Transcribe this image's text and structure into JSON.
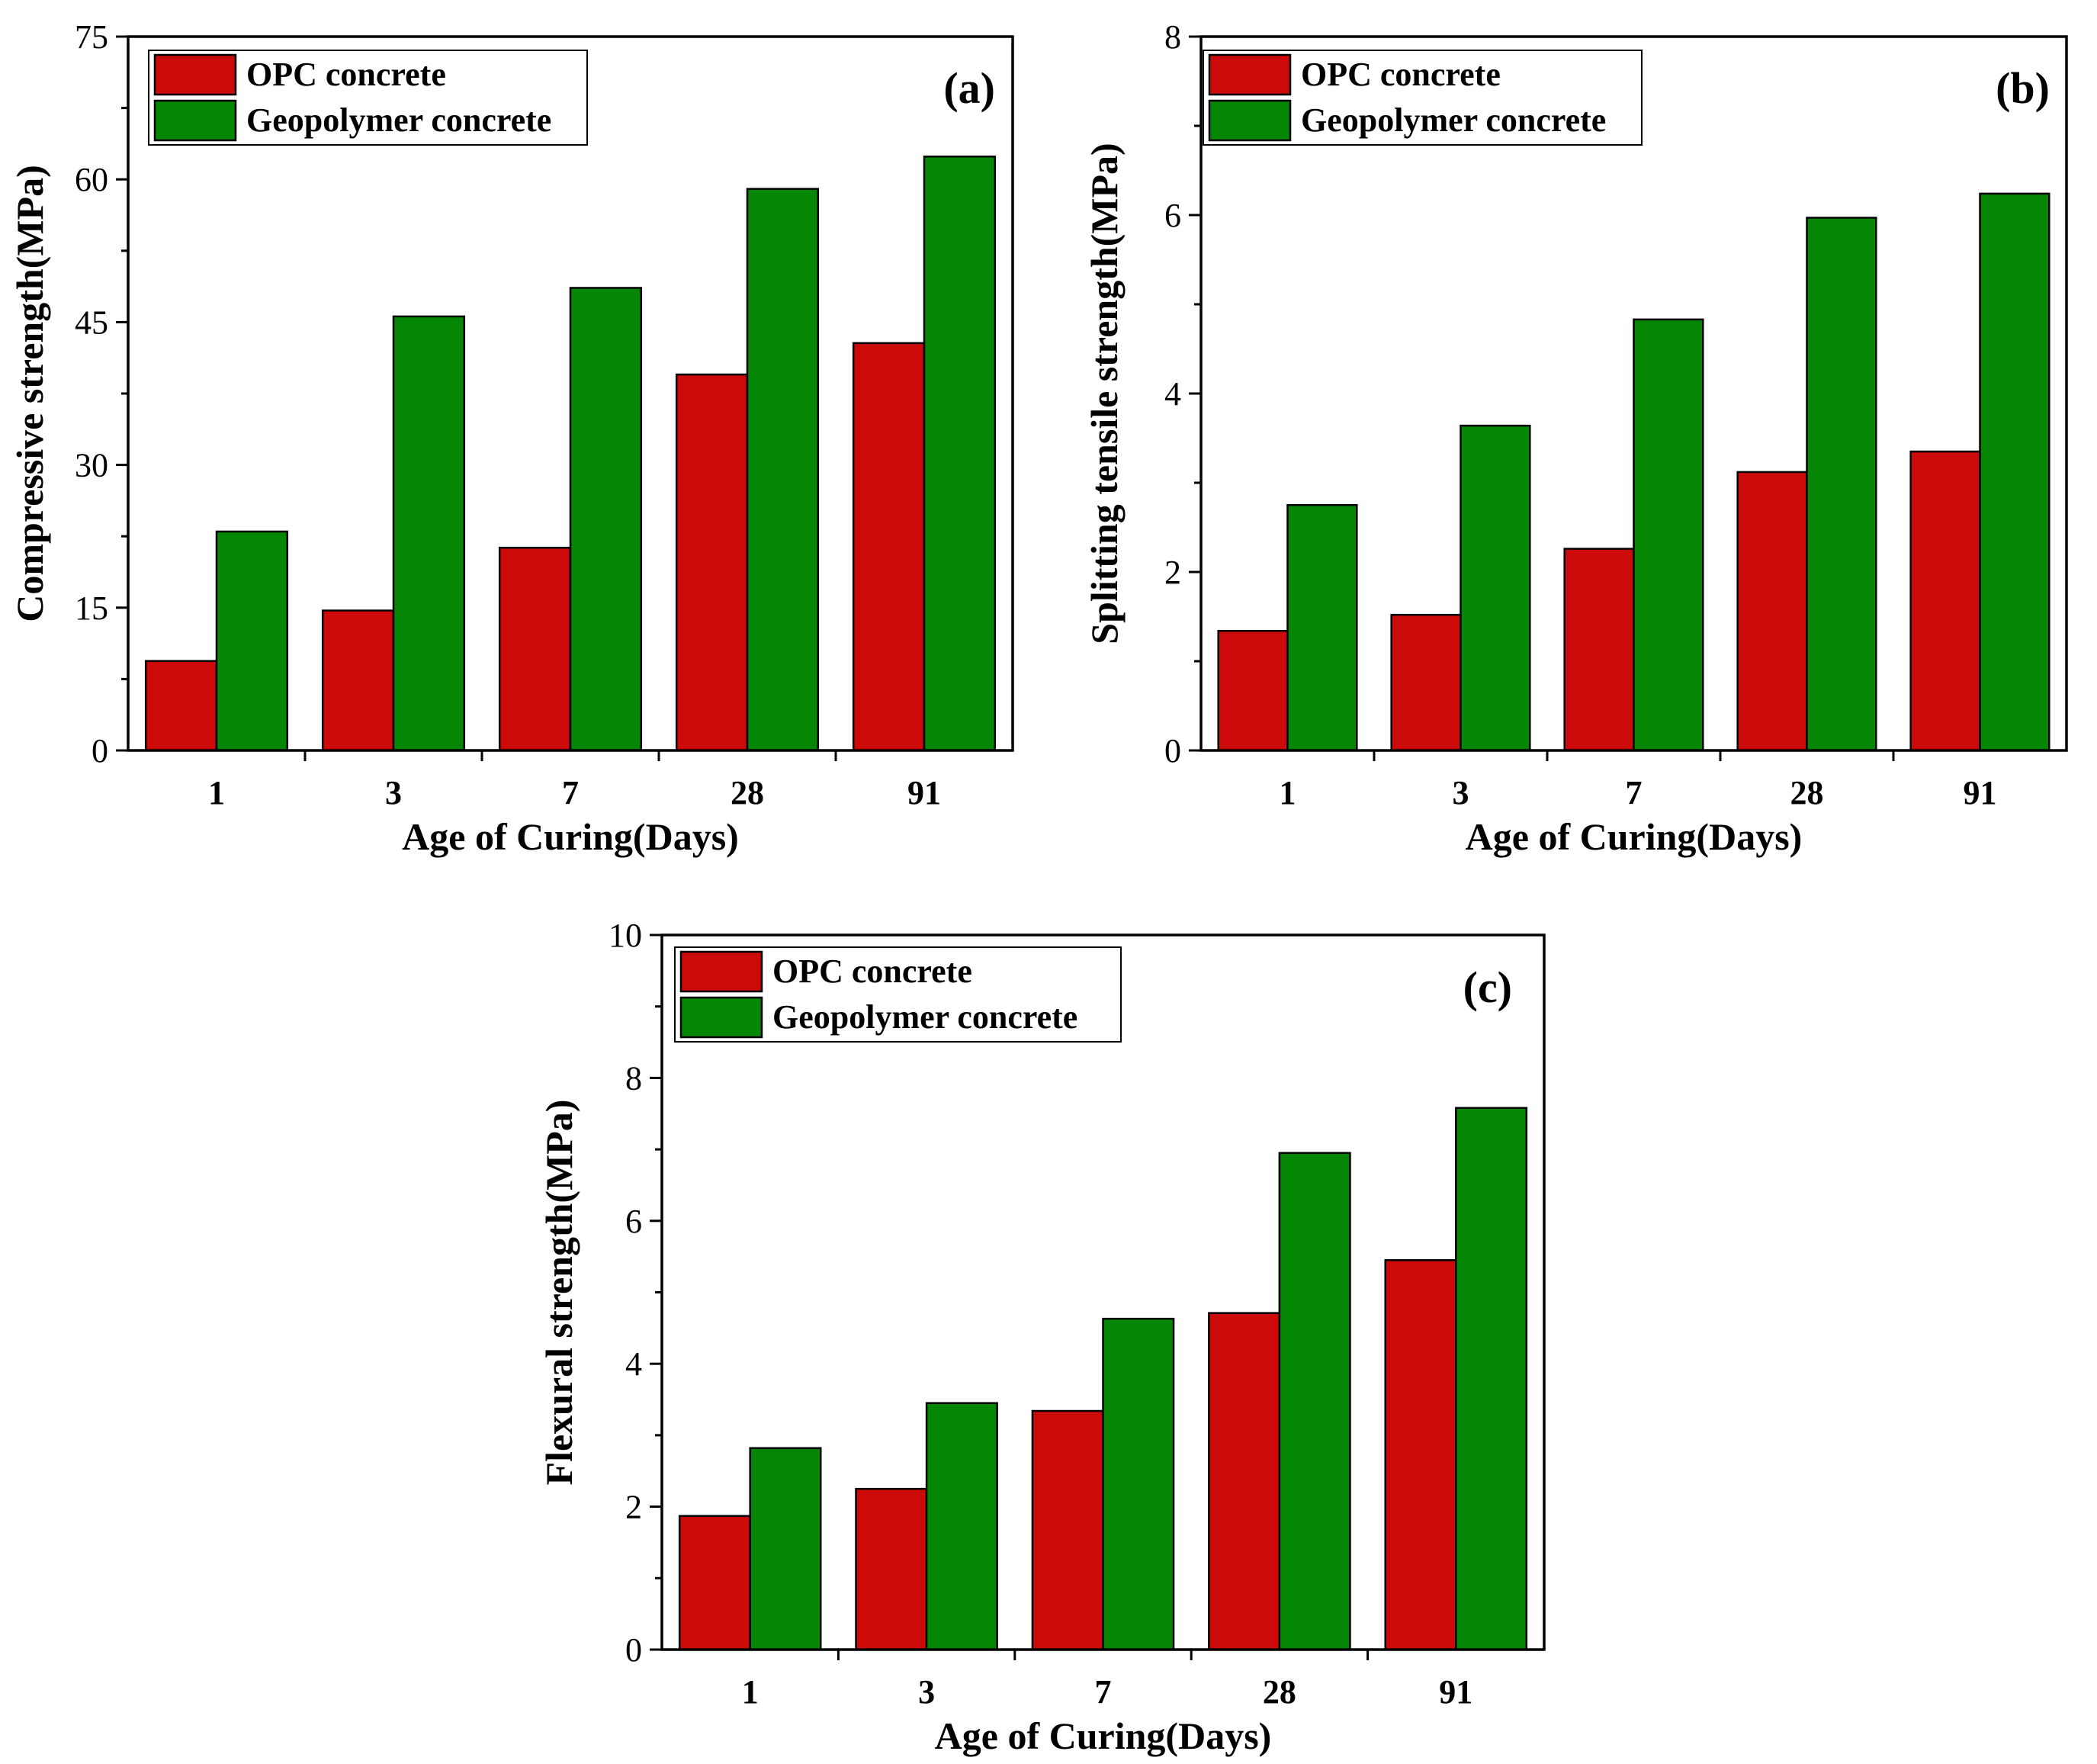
{
  "colors": {
    "opc": "#cc0a0a",
    "geopolymer": "#058705",
    "axis": "#000000",
    "background": "#ffffff"
  },
  "chart_data": [
    {
      "type": "bar",
      "panel_label": "(a)",
      "categories": [
        "1",
        "3",
        "7",
        "28",
        "91"
      ],
      "series": [
        {
          "name": "OPC concrete",
          "values": [
            9.4,
            14.7,
            21.3,
            39.5,
            42.8
          ]
        },
        {
          "name": "Geopolymer concrete",
          "values": [
            23.0,
            45.6,
            48.6,
            59.0,
            62.4
          ]
        }
      ],
      "xlabel": "Age of Curing(Days)",
      "ylabel": "Compressive strength(MPa)",
      "ylim": [
        0,
        75
      ],
      "yticks": [
        0,
        15,
        30,
        45,
        60,
        75
      ],
      "legend": "top-left",
      "grid": false
    },
    {
      "type": "bar",
      "panel_label": "(b)",
      "categories": [
        "1",
        "3",
        "7",
        "28",
        "91"
      ],
      "series": [
        {
          "name": "OPC concrete",
          "values": [
            1.34,
            1.52,
            2.26,
            3.12,
            3.35
          ]
        },
        {
          "name": "Geopolymer concrete",
          "values": [
            2.75,
            3.64,
            4.83,
            5.97,
            6.24
          ]
        }
      ],
      "xlabel": "Age of Curing(Days)",
      "ylabel": "Splitting tensile strength(MPa)",
      "ylim": [
        0,
        8
      ],
      "yticks": [
        0,
        2,
        4,
        6,
        8
      ],
      "legend": "top-left",
      "grid": false
    },
    {
      "type": "bar",
      "panel_label": "(c)",
      "categories": [
        "1",
        "3",
        "7",
        "28",
        "91"
      ],
      "series": [
        {
          "name": "OPC concrete",
          "values": [
            1.87,
            2.25,
            3.34,
            4.71,
            5.45
          ]
        },
        {
          "name": "Geopolymer concrete",
          "values": [
            2.82,
            3.45,
            4.63,
            6.95,
            7.58
          ]
        }
      ],
      "xlabel": "Age of Curing(Days)",
      "ylabel": "Flexural strength(MPa)",
      "ylim": [
        0,
        10
      ],
      "yticks": [
        0,
        2,
        4,
        6,
        8,
        10
      ],
      "legend": "top-left",
      "grid": false
    }
  ]
}
